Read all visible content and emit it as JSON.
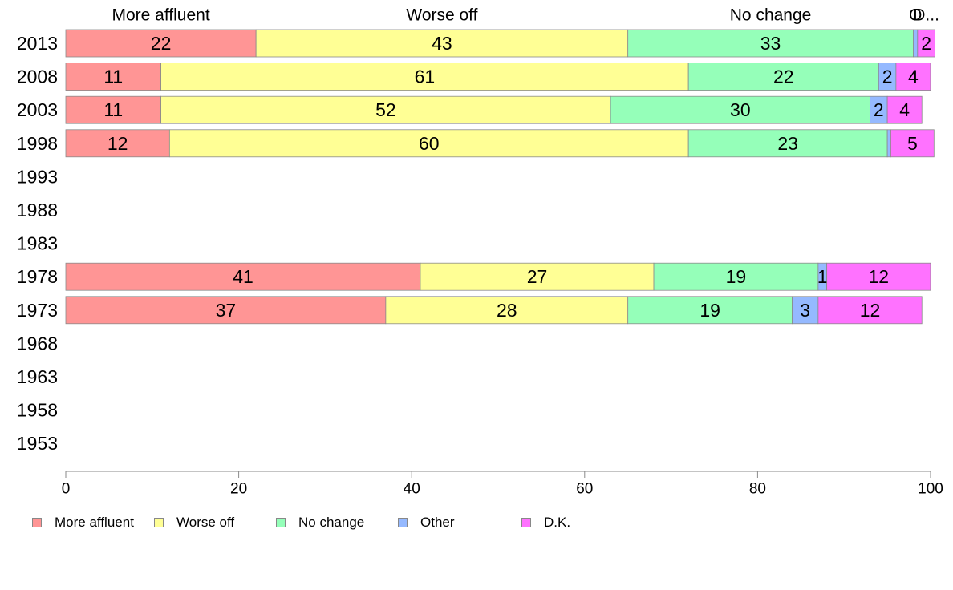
{
  "chart_data": {
    "type": "bar",
    "orientation": "horizontal",
    "stacked": true,
    "categories": [
      "2013",
      "2008",
      "2003",
      "1998",
      "1993",
      "1988",
      "1983",
      "1978",
      "1973",
      "1968",
      "1963",
      "1958",
      "1953"
    ],
    "series": [
      {
        "name": "More affluent",
        "color": "#ff9595",
        "values": [
          22,
          11,
          11,
          12,
          null,
          null,
          null,
          41,
          37,
          null,
          null,
          null,
          null
        ]
      },
      {
        "name": "Worse off",
        "color": "#ffff95",
        "values": [
          43,
          61,
          52,
          60,
          null,
          null,
          null,
          27,
          28,
          null,
          null,
          null,
          null
        ]
      },
      {
        "name": "No change",
        "color": "#95ffb9",
        "values": [
          33,
          22,
          30,
          23,
          null,
          null,
          null,
          19,
          19,
          null,
          null,
          null,
          null
        ]
      },
      {
        "name": "Other",
        "color": "#95b9ff",
        "values": [
          0.5,
          2,
          2,
          0.4,
          null,
          null,
          null,
          1,
          3,
          null,
          null,
          null,
          null
        ]
      },
      {
        "name": "D.K.",
        "color": "#ff72ff",
        "values": [
          2,
          4,
          4,
          5,
          null,
          null,
          null,
          12,
          12,
          null,
          null,
          null,
          null
        ]
      }
    ],
    "top_labels": [
      "More affluent",
      "Worse off",
      "No change",
      "O",
      "D..."
    ],
    "xlim": [
      0,
      100
    ],
    "xticks": [
      0,
      20,
      40,
      60,
      80,
      100
    ],
    "grid": false,
    "legend_position": "bottom-left"
  }
}
